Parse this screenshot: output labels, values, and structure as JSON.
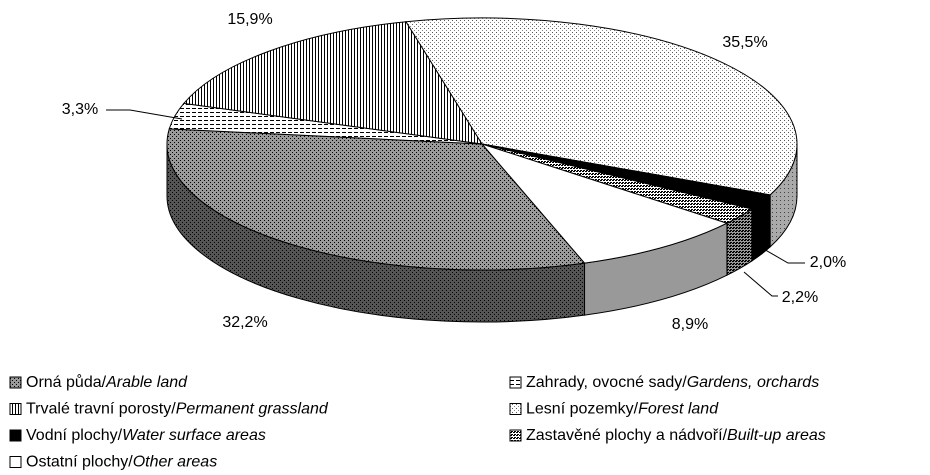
{
  "chart_data": {
    "type": "pie",
    "categories": [
      "Orná půda/Arable land",
      "Zahrady, ovocné sady/Gardens, orchards",
      "Trvalé travní porosty/Permanent grassland",
      "Lesní pozemky/Forest land",
      "Vodní plochy/Water surface areas",
      "Zastavěné plochy a nádvoří/Built-up areas",
      "Ostatní plochy/Other areas"
    ],
    "values": [
      32.2,
      3.3,
      15.9,
      35.5,
      2.0,
      2.2,
      8.9
    ],
    "value_labels": [
      "32,2%",
      "3,3%",
      "15,9%",
      "35,5%",
      "2,0%",
      "2,2%",
      "8,9%"
    ],
    "legend": "bottom"
  }
}
